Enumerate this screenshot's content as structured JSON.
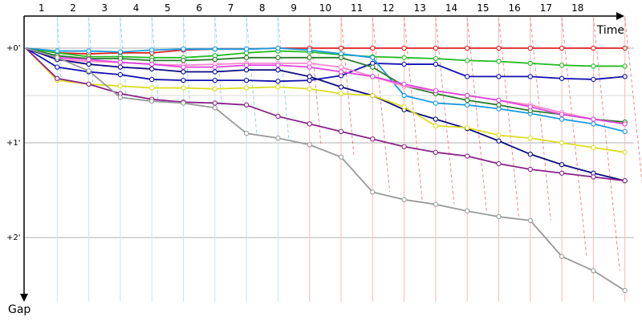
{
  "chart_data": {
    "type": "line",
    "xlabel": "Time",
    "ylabel": "Gap",
    "x_ticks": [
      "1",
      "2",
      "3",
      "4",
      "5",
      "6",
      "7",
      "8",
      "9",
      "10",
      "11",
      "12",
      "13",
      "14",
      "15",
      "16",
      "17",
      "18"
    ],
    "y_ticks": [
      "+0'",
      "+1'",
      "+2'"
    ],
    "ylim": [
      0,
      2.6
    ],
    "grid": true,
    "colors": {
      "axis": "#000000",
      "grid_h": "#b0b0b0",
      "grid_v_pre": "#c6e6f5",
      "grid_v_post": "#f7b9b9",
      "lap_link_pre": "#8fd3f0",
      "lap_link_post": "#f08a8a"
    },
    "series": [
      {
        "color": "#e02020",
        "values": [
          0.0,
          0.05,
          0.06,
          0.05,
          0.05,
          0.02,
          0.01,
          0.01,
          0.0,
          0.0,
          0.0,
          0.0,
          0.0,
          0.0,
          0.0,
          0.0,
          0.0,
          0.0,
          0.0,
          0.0
        ]
      },
      {
        "color": "#22bb22",
        "values": [
          0.0,
          0.05,
          0.09,
          0.09,
          0.1,
          0.1,
          0.08,
          0.05,
          0.03,
          0.04,
          0.07,
          0.09,
          0.1,
          0.11,
          0.13,
          0.14,
          0.16,
          0.18,
          0.19,
          0.19
        ]
      },
      {
        "color": "#1010b0",
        "values": [
          0.0,
          0.2,
          0.25,
          0.28,
          0.33,
          0.34,
          0.34,
          0.34,
          0.35,
          0.34,
          0.29,
          0.16,
          0.17,
          0.17,
          0.3,
          0.3,
          0.3,
          0.32,
          0.33,
          0.3
        ]
      },
      {
        "color": "#1a9be0",
        "values": [
          0.0,
          0.03,
          0.03,
          0.04,
          0.02,
          0.01,
          0.01,
          0.01,
          0.0,
          0.02,
          0.06,
          0.1,
          0.5,
          0.58,
          0.6,
          0.64,
          0.69,
          0.75,
          0.8,
          0.88
        ]
      },
      {
        "color": "#2a7a2a",
        "values": [
          0.0,
          0.08,
          0.11,
          0.11,
          0.13,
          0.13,
          0.12,
          0.1,
          0.1,
          0.1,
          0.1,
          0.2,
          0.4,
          0.48,
          0.55,
          0.6,
          0.66,
          0.7,
          0.75,
          0.78
        ]
      },
      {
        "color": "#ff88cc",
        "values": [
          0.0,
          0.12,
          0.14,
          0.15,
          0.17,
          0.18,
          0.17,
          0.16,
          0.16,
          0.16,
          0.2,
          0.3,
          0.4,
          0.45,
          0.5,
          0.55,
          0.6,
          0.68,
          0.75,
          0.8
        ]
      },
      {
        "color": "#dd44dd",
        "values": [
          0.0,
          0.1,
          0.12,
          0.15,
          0.17,
          0.2,
          0.2,
          0.18,
          0.18,
          0.2,
          0.25,
          0.3,
          0.38,
          0.45,
          0.5,
          0.55,
          0.62,
          0.7,
          0.75,
          0.8
        ]
      },
      {
        "color": "#0a0a80",
        "values": [
          0.0,
          0.12,
          0.17,
          0.2,
          0.22,
          0.25,
          0.25,
          0.23,
          0.23,
          0.3,
          0.41,
          0.5,
          0.65,
          0.75,
          0.85,
          0.98,
          1.12,
          1.23,
          1.32,
          1.4
        ]
      },
      {
        "color": "#dddd22",
        "values": [
          0.0,
          0.34,
          0.38,
          0.4,
          0.42,
          0.42,
          0.43,
          0.42,
          0.41,
          0.43,
          0.48,
          0.5,
          0.62,
          0.82,
          0.84,
          0.92,
          0.95,
          1.0,
          1.05,
          1.1
        ]
      },
      {
        "color": "#882288",
        "values": [
          0.0,
          0.32,
          0.38,
          0.48,
          0.54,
          0.57,
          0.58,
          0.6,
          0.72,
          0.8,
          0.88,
          0.96,
          1.04,
          1.1,
          1.14,
          1.22,
          1.28,
          1.32,
          1.36,
          1.4
        ]
      },
      {
        "color": "#999999",
        "values": [
          0.0,
          0.1,
          0.24,
          0.52,
          0.56,
          0.58,
          0.63,
          0.9,
          0.95,
          1.02,
          1.15,
          1.52,
          1.6,
          1.65,
          1.72,
          1.78,
          1.82,
          2.2,
          2.35,
          2.56
        ]
      }
    ]
  }
}
